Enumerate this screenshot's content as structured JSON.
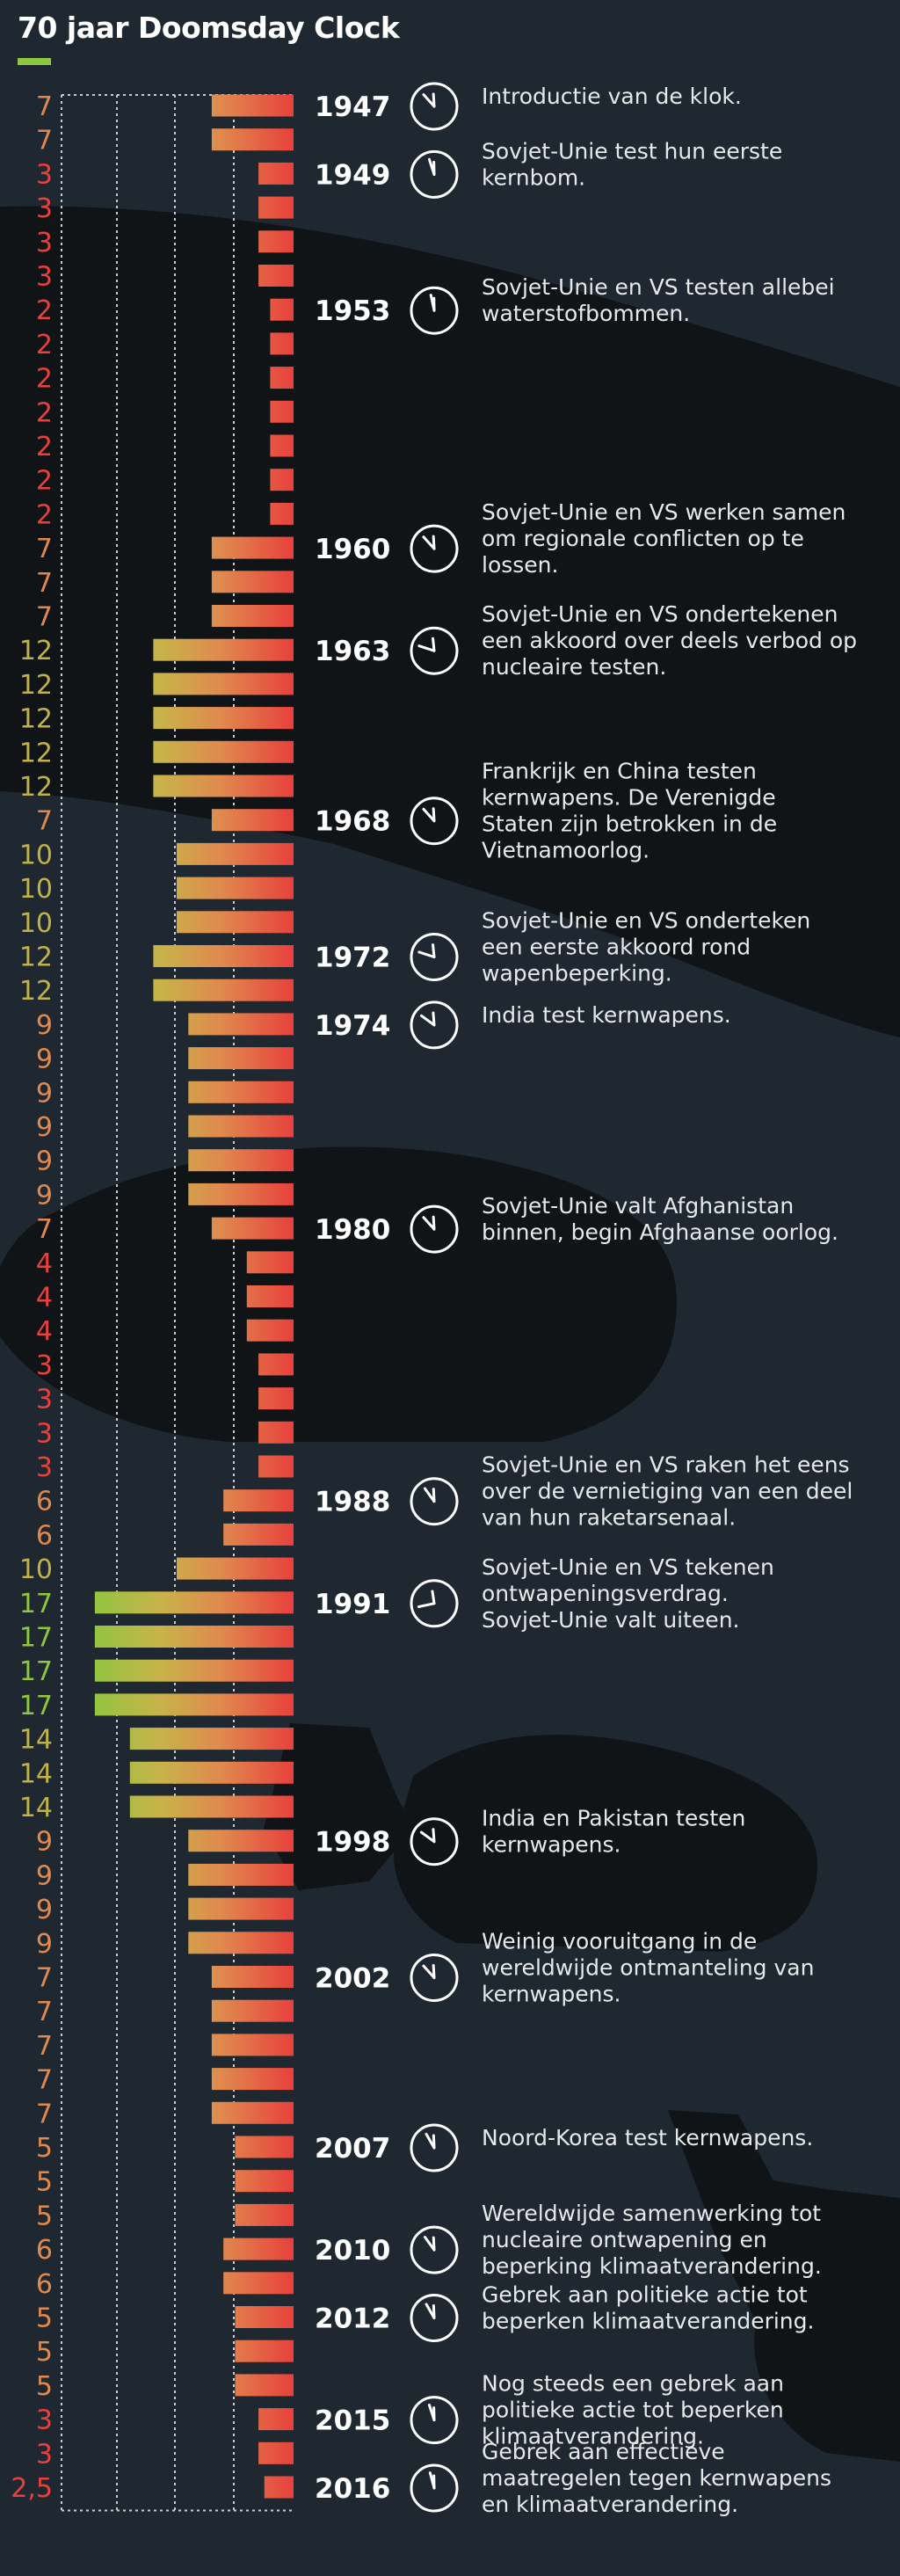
{
  "title": "70 jaar Doomsday Clock",
  "colors": {
    "background": "#1f2830",
    "accent": "#8dc63f",
    "bar_red": "#e8403c",
    "bar_green": "#8dc63f"
  },
  "chart_data": {
    "type": "bar",
    "orientation": "horizontal",
    "title": "70 jaar Doomsday Clock",
    "value_unit": "minuten tot middernacht",
    "xlim": [
      0,
      18
    ],
    "grid": true,
    "rows": [
      {
        "label": "7",
        "value": 7
      },
      {
        "label": "7",
        "value": 7
      },
      {
        "label": "3",
        "value": 3
      },
      {
        "label": "3",
        "value": 3
      },
      {
        "label": "3",
        "value": 3
      },
      {
        "label": "3",
        "value": 3
      },
      {
        "label": "2",
        "value": 2
      },
      {
        "label": "2",
        "value": 2
      },
      {
        "label": "2",
        "value": 2
      },
      {
        "label": "2",
        "value": 2
      },
      {
        "label": "2",
        "value": 2
      },
      {
        "label": "2",
        "value": 2
      },
      {
        "label": "2",
        "value": 2
      },
      {
        "label": "7",
        "value": 7
      },
      {
        "label": "7",
        "value": 7
      },
      {
        "label": "7",
        "value": 7
      },
      {
        "label": "12",
        "value": 12
      },
      {
        "label": "12",
        "value": 12
      },
      {
        "label": "12",
        "value": 12
      },
      {
        "label": "12",
        "value": 12
      },
      {
        "label": "12",
        "value": 12
      },
      {
        "label": "7",
        "value": 7
      },
      {
        "label": "10",
        "value": 10
      },
      {
        "label": "10",
        "value": 10
      },
      {
        "label": "10",
        "value": 10
      },
      {
        "label": "12",
        "value": 12
      },
      {
        "label": "12",
        "value": 12
      },
      {
        "label": "9",
        "value": 9
      },
      {
        "label": "9",
        "value": 9
      },
      {
        "label": "9",
        "value": 9
      },
      {
        "label": "9",
        "value": 9
      },
      {
        "label": "9",
        "value": 9
      },
      {
        "label": "9",
        "value": 9
      },
      {
        "label": "7",
        "value": 7
      },
      {
        "label": "4",
        "value": 4
      },
      {
        "label": "4",
        "value": 4
      },
      {
        "label": "4",
        "value": 4
      },
      {
        "label": "3",
        "value": 3
      },
      {
        "label": "3",
        "value": 3
      },
      {
        "label": "3",
        "value": 3
      },
      {
        "label": "3",
        "value": 3
      },
      {
        "label": "6",
        "value": 6
      },
      {
        "label": "6",
        "value": 6
      },
      {
        "label": "10",
        "value": 10
      },
      {
        "label": "17",
        "value": 17
      },
      {
        "label": "17",
        "value": 17
      },
      {
        "label": "17",
        "value": 17
      },
      {
        "label": "17",
        "value": 17
      },
      {
        "label": "14",
        "value": 14
      },
      {
        "label": "14",
        "value": 14
      },
      {
        "label": "14",
        "value": 14
      },
      {
        "label": "9",
        "value": 9
      },
      {
        "label": "9",
        "value": 9
      },
      {
        "label": "9",
        "value": 9
      },
      {
        "label": "9",
        "value": 9
      },
      {
        "label": "7",
        "value": 7
      },
      {
        "label": "7",
        "value": 7
      },
      {
        "label": "7",
        "value": 7
      },
      {
        "label": "7",
        "value": 7
      },
      {
        "label": "7",
        "value": 7
      },
      {
        "label": "5",
        "value": 5
      },
      {
        "label": "5",
        "value": 5
      },
      {
        "label": "5",
        "value": 5
      },
      {
        "label": "6",
        "value": 6
      },
      {
        "label": "6",
        "value": 6
      },
      {
        "label": "5",
        "value": 5
      },
      {
        "label": "5",
        "value": 5
      },
      {
        "label": "5",
        "value": 5
      },
      {
        "label": "3",
        "value": 3
      },
      {
        "label": "3",
        "value": 3
      },
      {
        "label": "2,5",
        "value": 2.5
      }
    ],
    "annotations": [
      {
        "row": 0,
        "year": "1947",
        "minutes": 7,
        "lines": [
          "Introductie van de klok."
        ]
      },
      {
        "row": 2,
        "year": "1949",
        "minutes": 3,
        "lines": [
          "Sovjet-Unie test hun eerste",
          "kernbom."
        ]
      },
      {
        "row": 6,
        "year": "1953",
        "minutes": 2,
        "lines": [
          "Sovjet-Unie en VS testen allebei",
          "waterstofbommen."
        ]
      },
      {
        "row": 13,
        "year": "1960",
        "minutes": 7,
        "lines": [
          "Sovjet-Unie en VS werken samen",
          "om regionale conflicten op te",
          "lossen."
        ]
      },
      {
        "row": 16,
        "year": "1963",
        "minutes": 12,
        "lines": [
          "Sovjet-Unie en VS ondertekenen",
          "een akkoord over deels verbod op",
          "nucleaire testen."
        ]
      },
      {
        "row": 21,
        "year": "1968",
        "minutes": 7,
        "lines": [
          "Frankrijk en China testen",
          "kernwapens. De Verenigde",
          "Staten zijn betrokken in de",
          "Vietnamoorlog."
        ]
      },
      {
        "row": 25,
        "year": "1972",
        "minutes": 12,
        "lines": [
          "Sovjet-Unie en VS onderteken",
          "een eerste akkoord rond",
          "wapenbeperking."
        ]
      },
      {
        "row": 27,
        "year": "1974",
        "minutes": 9,
        "lines": [
          "India test kernwapens."
        ]
      },
      {
        "row": 33,
        "year": "1980",
        "minutes": 7,
        "lines": [
          "Sovjet-Unie valt Afghanistan",
          "binnen, begin Afghaanse oorlog."
        ]
      },
      {
        "row": 41,
        "year": "1988",
        "minutes": 6,
        "lines": [
          "Sovjet-Unie en VS raken het eens",
          "over de vernietiging van een deel",
          "van hun raketarsenaal."
        ]
      },
      {
        "row": 44,
        "year": "1991",
        "minutes": 17,
        "lines": [
          "Sovjet-Unie en VS tekenen",
          "ontwapeningsverdrag.",
          "Sovjet-Unie valt uiteen."
        ]
      },
      {
        "row": 51,
        "year": "1998",
        "minutes": 9,
        "lines": [
          "India en Pakistan testen",
          "kernwapens."
        ]
      },
      {
        "row": 55,
        "year": "2002",
        "minutes": 7,
        "lines": [
          "Weinig vooruitgang in de",
          "wereldwijde ontmanteling van",
          "kernwapens."
        ]
      },
      {
        "row": 60,
        "year": "2007",
        "minutes": 5,
        "lines": [
          "Noord-Korea test kernwapens."
        ]
      },
      {
        "row": 63,
        "year": "2010",
        "minutes": 6,
        "lines": [
          "Wereldwijde samenwerking tot",
          "nucleaire ontwapening en",
          "beperking klimaatverandering."
        ]
      },
      {
        "row": 65,
        "year": "2012",
        "minutes": 5,
        "lines": [
          "Gebrek aan politieke actie tot",
          "beperken klimaatverandering."
        ]
      },
      {
        "row": 68,
        "year": "2015",
        "minutes": 3,
        "lines": [
          "Nog steeds een gebrek aan",
          "politieke actie tot beperken",
          "klimaatverandering."
        ]
      },
      {
        "row": 70,
        "year": "2016",
        "minutes": 2.5,
        "lines": [
          "Gebrek aan effectieve",
          "maatregelen tegen kernwapens",
          "en klimaatverandering."
        ]
      }
    ]
  }
}
